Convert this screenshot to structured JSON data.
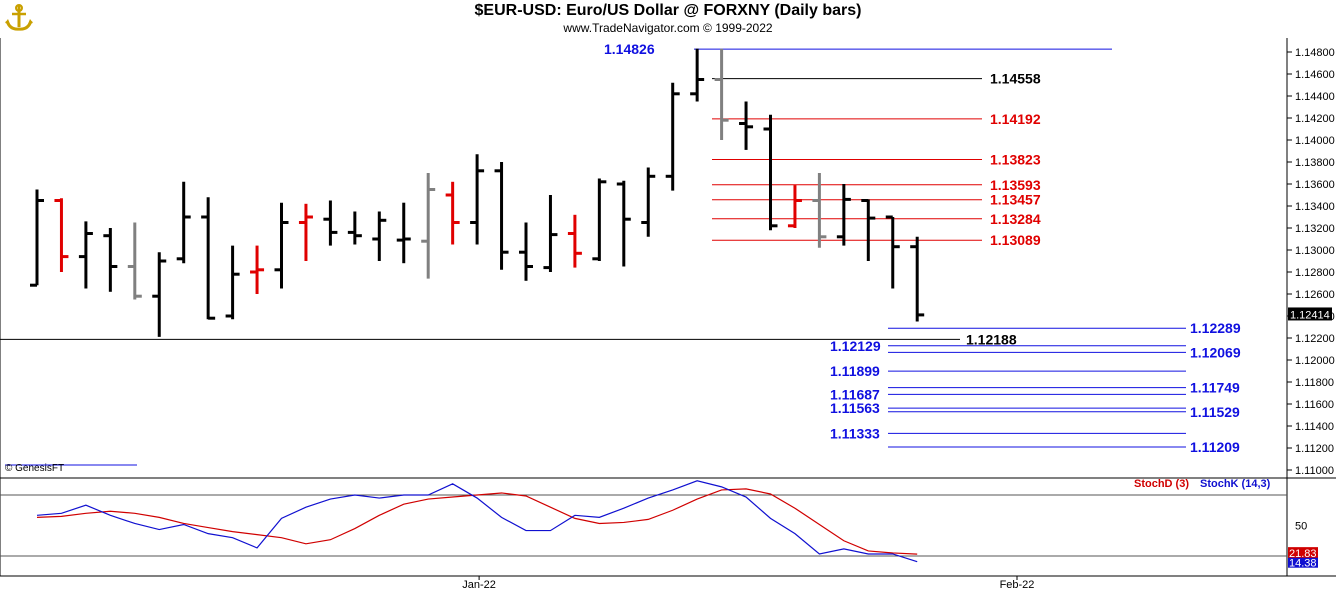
{
  "header": {
    "title": "$EUR-USD:  Euro/US Dollar @ FORXNY  (Daily bars)",
    "subtitle": "www.TradeNavigator.com © 1999-2022",
    "logo_icon": "gold-anchor-icon"
  },
  "copyright": "© GenesisFT",
  "colors": {
    "up_bar": "#000000",
    "red_bar": "#e00000",
    "gray_bar": "#808080",
    "blue_level": "#1010e0",
    "red_level": "#e00000",
    "black_level": "#000000",
    "stoch_d": "#d00000",
    "stoch_k": "#1010d0"
  },
  "chart_data": [
    {
      "type": "ohlc",
      "title": "$EUR-USD:  Euro/US Dollar @ FORXNY  (Daily bars)",
      "ylim": [
        1.11,
        1.149
      ],
      "y_ticks": [
        "1.14800",
        "1.14600",
        "1.14400",
        "1.14200",
        "1.14000",
        "1.13800",
        "1.13600",
        "1.13400",
        "1.13200",
        "1.13000",
        "1.12800",
        "1.12600",
        "1.12400",
        "1.12200",
        "1.12000",
        "1.11800",
        "1.11600",
        "1.11400",
        "1.11200",
        "1.11000"
      ],
      "last_price": "1.12414",
      "bars": [
        {
          "o": 1.1268,
          "h": 1.1355,
          "l": 1.1268,
          "c": 1.1345,
          "color": "black"
        },
        {
          "o": 1.1345,
          "h": 1.1347,
          "l": 1.128,
          "c": 1.1294,
          "color": "red"
        },
        {
          "o": 1.1294,
          "h": 1.1326,
          "l": 1.1265,
          "c": 1.1315,
          "color": "black"
        },
        {
          "o": 1.1313,
          "h": 1.132,
          "l": 1.1262,
          "c": 1.1285,
          "color": "black"
        },
        {
          "o": 1.1285,
          "h": 1.1325,
          "l": 1.1255,
          "c": 1.1258,
          "color": "gray"
        },
        {
          "o": 1.1258,
          "h": 1.1298,
          "l": 1.1221,
          "c": 1.129,
          "color": "black"
        },
        {
          "o": 1.1292,
          "h": 1.1362,
          "l": 1.1288,
          "c": 1.133,
          "color": "black"
        },
        {
          "o": 1.133,
          "h": 1.1348,
          "l": 1.1237,
          "c": 1.1238,
          "color": "black"
        },
        {
          "o": 1.124,
          "h": 1.1304,
          "l": 1.1237,
          "c": 1.1278,
          "color": "black"
        },
        {
          "o": 1.128,
          "h": 1.1304,
          "l": 1.126,
          "c": 1.1282,
          "color": "red"
        },
        {
          "o": 1.1282,
          "h": 1.1343,
          "l": 1.1265,
          "c": 1.1325,
          "color": "black"
        },
        {
          "o": 1.1325,
          "h": 1.1342,
          "l": 1.129,
          "c": 1.133,
          "color": "red"
        },
        {
          "o": 1.1328,
          "h": 1.1345,
          "l": 1.1304,
          "c": 1.1316,
          "color": "black"
        },
        {
          "o": 1.1316,
          "h": 1.1335,
          "l": 1.1305,
          "c": 1.1313,
          "color": "black"
        },
        {
          "o": 1.131,
          "h": 1.1335,
          "l": 1.129,
          "c": 1.1327,
          "color": "black"
        },
        {
          "o": 1.1309,
          "h": 1.1343,
          "l": 1.1288,
          "c": 1.131,
          "color": "black"
        },
        {
          "o": 1.1308,
          "h": 1.137,
          "l": 1.1274,
          "c": 1.1355,
          "color": "gray"
        },
        {
          "o": 1.135,
          "h": 1.1362,
          "l": 1.1305,
          "c": 1.1325,
          "color": "red"
        },
        {
          "o": 1.1325,
          "h": 1.1387,
          "l": 1.1305,
          "c": 1.1372,
          "color": "black"
        },
        {
          "o": 1.1372,
          "h": 1.138,
          "l": 1.1282,
          "c": 1.1298,
          "color": "black"
        },
        {
          "o": 1.1298,
          "h": 1.1325,
          "l": 1.1272,
          "c": 1.1285,
          "color": "black"
        },
        {
          "o": 1.1284,
          "h": 1.135,
          "l": 1.128,
          "c": 1.1314,
          "color": "black"
        },
        {
          "o": 1.1315,
          "h": 1.1332,
          "l": 1.1284,
          "c": 1.1297,
          "color": "red"
        },
        {
          "o": 1.1292,
          "h": 1.1365,
          "l": 1.129,
          "c": 1.1362,
          "color": "black"
        },
        {
          "o": 1.136,
          "h": 1.1363,
          "l": 1.1285,
          "c": 1.1328,
          "color": "black"
        },
        {
          "o": 1.1325,
          "h": 1.1375,
          "l": 1.1312,
          "c": 1.1367,
          "color": "black"
        },
        {
          "o": 1.1367,
          "h": 1.1452,
          "l": 1.1354,
          "c": 1.1442,
          "color": "black"
        },
        {
          "o": 1.1442,
          "h": 1.1483,
          "l": 1.1435,
          "c": 1.1455,
          "color": "black"
        },
        {
          "o": 1.1455,
          "h": 1.1483,
          "l": 1.14,
          "c": 1.1418,
          "color": "gray"
        },
        {
          "o": 1.1415,
          "h": 1.1435,
          "l": 1.1391,
          "c": 1.1412,
          "color": "black"
        },
        {
          "o": 1.141,
          "h": 1.1423,
          "l": 1.1318,
          "c": 1.1322,
          "color": "black"
        },
        {
          "o": 1.1322,
          "h": 1.1359,
          "l": 1.132,
          "c": 1.1345,
          "color": "red"
        },
        {
          "o": 1.1345,
          "h": 1.137,
          "l": 1.1302,
          "c": 1.1312,
          "color": "gray"
        },
        {
          "o": 1.1312,
          "h": 1.136,
          "l": 1.1304,
          "c": 1.1346,
          "color": "black"
        },
        {
          "o": 1.1345,
          "h": 1.1346,
          "l": 1.129,
          "c": 1.1329,
          "color": "black"
        },
        {
          "o": 1.133,
          "h": 1.133,
          "l": 1.1265,
          "c": 1.1303,
          "color": "black"
        },
        {
          "o": 1.1303,
          "h": 1.1312,
          "l": 1.1235,
          "c": 1.1241,
          "color": "black"
        }
      ],
      "levels": [
        {
          "label": "1.14826",
          "value": 1.14826,
          "color": "blue",
          "side": "left"
        },
        {
          "label": "1.14558",
          "value": 1.14558,
          "color": "black",
          "side": "right"
        },
        {
          "label": "1.14192",
          "value": 1.14192,
          "color": "red",
          "side": "right"
        },
        {
          "label": "1.13823",
          "value": 1.13823,
          "color": "red",
          "side": "right"
        },
        {
          "label": "1.13593",
          "value": 1.13593,
          "color": "red",
          "side": "right"
        },
        {
          "label": "1.13457",
          "value": 1.13457,
          "color": "red",
          "side": "right"
        },
        {
          "label": "1.13284",
          "value": 1.13284,
          "color": "red",
          "side": "right"
        },
        {
          "label": "1.13089",
          "value": 1.13089,
          "color": "red",
          "side": "right"
        },
        {
          "label": "1.12289",
          "value": 1.12289,
          "color": "blue",
          "side": "right"
        },
        {
          "label": "1.12188",
          "value": 1.12188,
          "color": "black",
          "side": "mid"
        },
        {
          "label": "1.12129",
          "value": 1.12129,
          "color": "blue",
          "side": "left"
        },
        {
          "label": "1.12069",
          "value": 1.12069,
          "color": "blue",
          "side": "right"
        },
        {
          "label": "1.11899",
          "value": 1.11899,
          "color": "blue",
          "side": "left"
        },
        {
          "label": "1.11749",
          "value": 1.11749,
          "color": "blue",
          "side": "right"
        },
        {
          "label": "1.11687",
          "value": 1.11687,
          "color": "blue",
          "side": "left"
        },
        {
          "label": "1.11563",
          "value": 1.11563,
          "color": "blue",
          "side": "left"
        },
        {
          "label": "1.11529",
          "value": 1.11529,
          "color": "blue",
          "side": "right"
        },
        {
          "label": "1.11333",
          "value": 1.11333,
          "color": "blue",
          "side": "left"
        },
        {
          "label": "1.11209",
          "value": 1.11209,
          "color": "blue",
          "side": "right"
        }
      ],
      "x_labels": [
        {
          "label": "Jan-22",
          "bar_index": 18
        },
        {
          "label": "Feb-22",
          "bar_index": 40
        }
      ]
    },
    {
      "type": "line",
      "title": "",
      "ylim": [
        0,
        100
      ],
      "y_ticks": [
        "50"
      ],
      "legend": [
        "StochD (3)",
        "StochK (14,3)"
      ],
      "last_values": [
        "21.83",
        "14.38"
      ],
      "series": [
        {
          "name": "StochD (3)",
          "color": "red",
          "values": [
            58,
            59,
            62,
            64,
            62,
            58,
            52,
            48,
            44,
            41,
            38,
            32,
            36,
            47,
            60,
            71,
            76,
            78,
            80,
            82,
            79,
            68,
            57,
            52,
            53,
            56,
            65,
            76,
            85,
            86,
            81,
            67,
            51,
            35,
            25,
            23,
            21.83
          ]
        },
        {
          "name": "StochK (14,3)",
          "color": "blue",
          "values": [
            60,
            62,
            70,
            60,
            52,
            46,
            51,
            42,
            38,
            28,
            57,
            68,
            76,
            80,
            77,
            80,
            80,
            91,
            77,
            58,
            45,
            45,
            60,
            58,
            67,
            77,
            85,
            94,
            88,
            78,
            57,
            42,
            22,
            27,
            22,
            22,
            14.38
          ]
        }
      ]
    }
  ]
}
